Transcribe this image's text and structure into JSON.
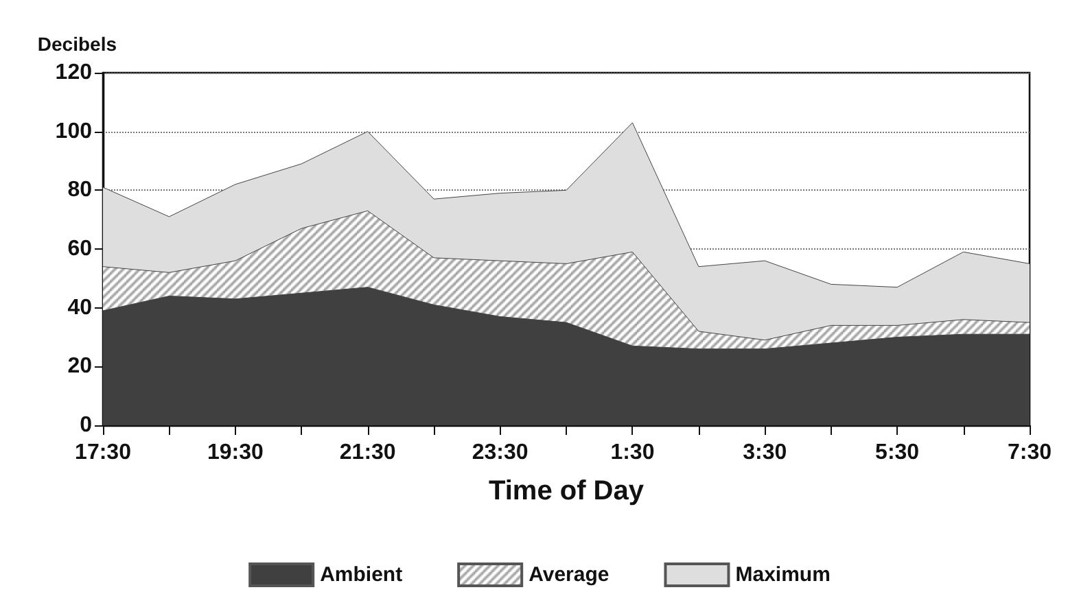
{
  "chart_data": {
    "type": "area",
    "ylabel": "Decibels",
    "xlabel": "Time of Day",
    "categories": [
      "17:30",
      null,
      "19:30",
      null,
      "21:30",
      null,
      "23:30",
      null,
      "1:30",
      null,
      "3:30",
      null,
      "5:30",
      null,
      "7:30"
    ],
    "series": [
      {
        "name": "Ambient",
        "color": "#404040",
        "values": [
          39,
          44,
          43,
          45,
          47,
          41,
          37,
          35,
          27,
          26,
          26,
          28,
          30,
          31,
          31
        ]
      },
      {
        "name": "Average",
        "color": "#9a9a9a",
        "values": [
          54,
          52,
          56,
          67,
          73,
          57,
          56,
          55,
          59,
          32,
          29,
          34,
          34,
          36,
          35
        ]
      },
      {
        "name": "Maximum",
        "color": "#dedede",
        "values": [
          81,
          71,
          82,
          89,
          100,
          77,
          79,
          80,
          103,
          54,
          56,
          48,
          47,
          59,
          55
        ]
      }
    ],
    "ylim": [
      0,
      120
    ],
    "yticks": [
      0,
      20,
      40,
      60,
      80,
      100,
      120
    ],
    "grid": "y",
    "legend": "bottom"
  }
}
